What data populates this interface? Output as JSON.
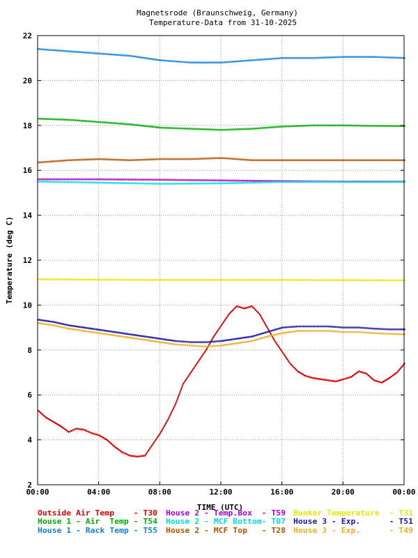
{
  "chart_data": {
    "type": "line",
    "title": "Magnetsrode (Braunschweig, Germany)",
    "subtitle": "Temperature-Data from 31-10-2025",
    "xlabel": "TIME (UTC)",
    "ylabel": "Temperature (deg C)",
    "xlim": [
      0,
      24
    ],
    "ylim": [
      2,
      22
    ],
    "x_ticks": [
      0,
      4,
      8,
      12,
      16,
      20,
      24
    ],
    "x_tick_labels": [
      "00:00",
      "04:00",
      "08:00",
      "12:00",
      "16:00",
      "20:00",
      "00:00"
    ],
    "y_ticks": [
      2,
      4,
      6,
      8,
      10,
      12,
      14,
      16,
      18,
      20,
      22
    ],
    "y_tick_labels": [
      "2",
      "4",
      "6",
      "8",
      "10",
      "12",
      "14",
      "16",
      "18",
      "20",
      "22"
    ],
    "grid": true,
    "legend_position": "bottom",
    "series": [
      {
        "name": "Outside Air Temp",
        "id": "T30",
        "color": "#dd0000",
        "x": [
          0,
          0.5,
          1,
          1.5,
          2,
          2.5,
          3,
          3.5,
          4,
          4.5,
          5,
          5.5,
          6,
          6.5,
          7,
          7.5,
          8,
          8.5,
          9,
          9.5,
          10,
          10.5,
          11,
          11.5,
          12,
          12.5,
          13,
          13.5,
          14,
          14.5,
          15,
          15.5,
          16,
          16.5,
          17,
          17.5,
          18,
          18.5,
          19,
          19.5,
          20,
          20.5,
          21,
          21.5,
          22,
          22.5,
          23,
          23.5,
          24
        ],
        "values": [
          5.3,
          5.0,
          4.8,
          4.6,
          4.35,
          4.5,
          4.45,
          4.3,
          4.2,
          4.0,
          3.7,
          3.45,
          3.3,
          3.25,
          3.3,
          3.8,
          4.3,
          4.9,
          5.6,
          6.5,
          7.0,
          7.5,
          8.0,
          8.6,
          9.1,
          9.6,
          9.95,
          9.85,
          9.95,
          9.6,
          9.0,
          8.4,
          7.9,
          7.4,
          7.05,
          6.85,
          6.75,
          6.7,
          6.65,
          6.6,
          6.7,
          6.8,
          7.05,
          6.95,
          6.65,
          6.55,
          6.75,
          7.0,
          7.4
        ]
      },
      {
        "name": "House 2 - Temp.Box",
        "id": "T59",
        "color": "#aa00dd",
        "x": [
          0,
          4,
          8,
          12,
          16,
          20,
          24
        ],
        "values": [
          15.6,
          15.6,
          15.58,
          15.55,
          15.52,
          15.5,
          15.5
        ]
      },
      {
        "name": "Bunker Temperature",
        "id": "T31",
        "color": "#e8e800",
        "x": [
          0,
          4,
          8,
          12,
          16,
          20,
          24
        ],
        "values": [
          11.15,
          11.13,
          11.12,
          11.12,
          11.12,
          11.11,
          11.1
        ]
      },
      {
        "name": "House 1 - Air Temp",
        "id": "T54",
        "color": "#00aa00",
        "x": [
          0,
          2,
          4,
          6,
          8,
          10,
          12,
          14,
          16,
          18,
          20,
          22,
          24
        ],
        "values": [
          18.3,
          18.25,
          18.15,
          18.05,
          17.9,
          17.85,
          17.8,
          17.85,
          17.95,
          18.0,
          18.0,
          17.98,
          17.97
        ]
      },
      {
        "name": "House 2 - MCF Bottom",
        "id": "T07",
        "color": "#00dddd",
        "x": [
          0,
          4,
          8,
          12,
          16,
          20,
          24
        ],
        "values": [
          15.5,
          15.45,
          15.4,
          15.42,
          15.48,
          15.48,
          15.48
        ]
      },
      {
        "name": "House 3 - Exp.",
        "id": "T51",
        "color": "#1a1aa8",
        "x": [
          0,
          1,
          2,
          3,
          4,
          5,
          6,
          7,
          8,
          9,
          10,
          11,
          12,
          13,
          14,
          15,
          16,
          17,
          18,
          19,
          20,
          21,
          22,
          23,
          24
        ],
        "values": [
          9.35,
          9.25,
          9.1,
          9.0,
          8.9,
          8.8,
          8.7,
          8.6,
          8.5,
          8.4,
          8.35,
          8.35,
          8.4,
          8.5,
          8.6,
          8.8,
          9.0,
          9.05,
          9.05,
          9.05,
          9.0,
          9.0,
          8.95,
          8.92,
          8.92
        ]
      },
      {
        "name": "House 1 - Rack Temp",
        "id": "T55",
        "color": "#1080e0",
        "x": [
          0,
          2,
          4,
          6,
          8,
          10,
          12,
          14,
          16,
          18,
          20,
          22,
          24
        ],
        "values": [
          21.4,
          21.3,
          21.2,
          21.1,
          20.9,
          20.8,
          20.8,
          20.9,
          21.0,
          21.0,
          21.05,
          21.05,
          21.0
        ]
      },
      {
        "name": "House 2 - MCF Top",
        "id": "T28",
        "color": "#b85000",
        "x": [
          0,
          2,
          4,
          6,
          8,
          10,
          12,
          14,
          16,
          18,
          20,
          22,
          24
        ],
        "values": [
          16.35,
          16.45,
          16.5,
          16.45,
          16.5,
          16.5,
          16.55,
          16.45,
          16.45,
          16.45,
          16.45,
          16.45,
          16.45
        ]
      },
      {
        "name": "House 3 - Exp.",
        "id": "T49",
        "color": "#f0b020",
        "x": [
          0,
          1,
          2,
          3,
          4,
          5,
          6,
          7,
          8,
          9,
          10,
          11,
          12,
          13,
          14,
          15,
          16,
          17,
          18,
          19,
          20,
          21,
          22,
          23,
          24
        ],
        "values": [
          9.2,
          9.1,
          8.95,
          8.85,
          8.75,
          8.65,
          8.55,
          8.45,
          8.35,
          8.25,
          8.2,
          8.15,
          8.2,
          8.3,
          8.4,
          8.6,
          8.75,
          8.85,
          8.85,
          8.85,
          8.8,
          8.8,
          8.75,
          8.72,
          8.7
        ]
      }
    ],
    "legend": [
      {
        "text": "Outside Air Temp    - T30",
        "color": "#dd0000"
      },
      {
        "text": "House 2 - Temp.Box  - T59",
        "color": "#aa00dd"
      },
      {
        "text": "Bunker Temperature  - T31",
        "color": "#e8e800"
      },
      {
        "text": "House 1 - Air  Temp - T54",
        "color": "#00aa00"
      },
      {
        "text": "House 2 - MCF Bottom- T07",
        "color": "#00dddd"
      },
      {
        "text": "House 3 - Exp.      - T51",
        "color": "#1a1aa8"
      },
      {
        "text": "House 1 - Rack Temp - T55",
        "color": "#1080e0"
      },
      {
        "text": "House 2 - MCF Top   - T28",
        "color": "#b85000"
      },
      {
        "text": "House 3 - Exp.      - T49",
        "color": "#f0b020"
      }
    ]
  }
}
